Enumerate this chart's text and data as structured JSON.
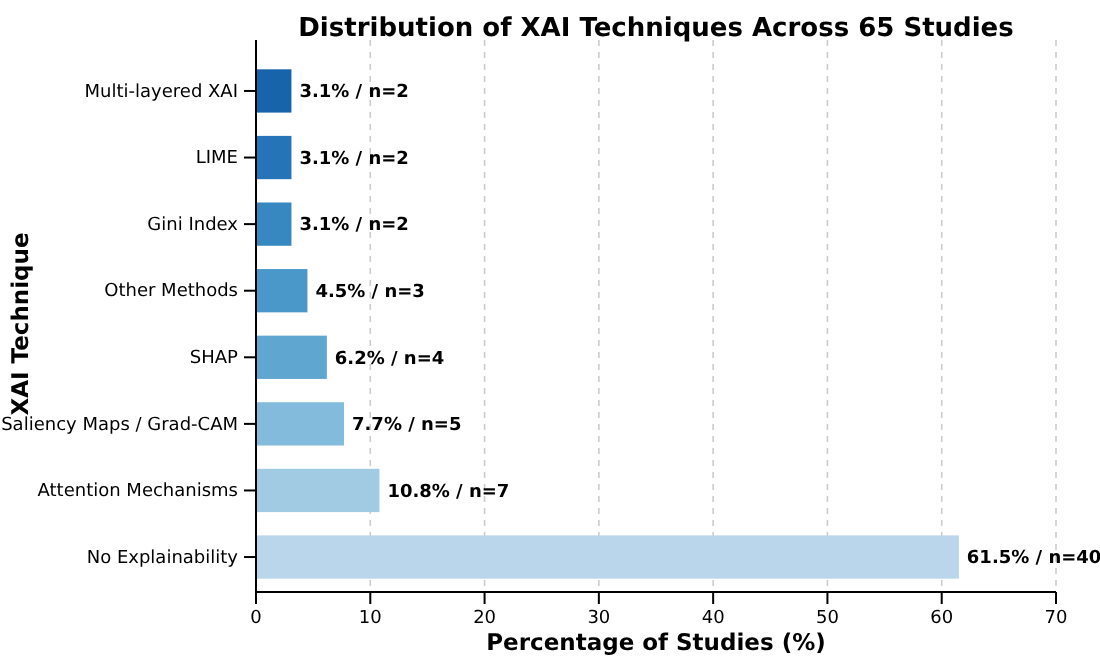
{
  "chart_data": {
    "type": "bar",
    "orientation": "horizontal",
    "title": "Distribution of XAI Techniques Across 65 Studies",
    "xlabel": "Percentage of Studies (%)",
    "ylabel": "XAI Technique",
    "categories": [
      "Multi-layered XAI",
      "LIME",
      "Gini Index",
      "Other Methods",
      "SHAP",
      "Saliency Maps / Grad-CAM",
      "Attention Mechanisms",
      "No Explainability"
    ],
    "values": [
      3.1,
      3.1,
      3.1,
      4.5,
      6.2,
      7.7,
      10.8,
      61.5
    ],
    "colors": [
      "#1764ab",
      "#2474b7",
      "#3787c0",
      "#4a98c9",
      "#5fa6d1",
      "#82bbdb",
      "#a0cbe2",
      "#b9d6ea"
    ],
    "value_labels": [
      "3.1% / n=2",
      "3.1% / n=2",
      "3.1% / n=2",
      "4.5% / n=3",
      "6.2% / n=4",
      "7.7% / n=5",
      "10.8% / n=7",
      "61.5% / n=40"
    ],
    "xlim": [
      0,
      70
    ],
    "xticks": [
      0,
      10,
      20,
      30,
      40,
      50,
      60,
      70
    ],
    "grid": "x"
  }
}
